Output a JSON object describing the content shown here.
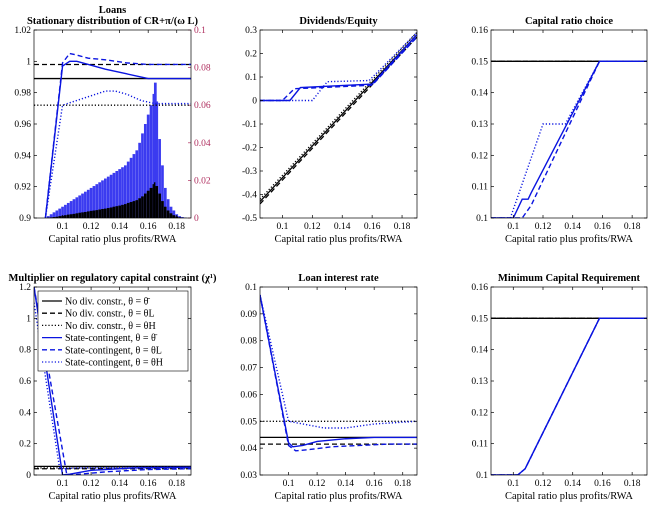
{
  "colors": {
    "black": "#000000",
    "blue": "#0a14e0",
    "hist": "#3b3bf0",
    "right_axis": "#b03060"
  },
  "legend": [
    {
      "label": "No div. constr., θ = θ̄",
      "color": "#000000",
      "dash": "solid"
    },
    {
      "label": "No div. constr., θ = θL",
      "color": "#000000",
      "dash": "dashed"
    },
    {
      "label": "No div. constr., θ = θH",
      "color": "#000000",
      "dash": "dotted"
    },
    {
      "label": "State-contingent, θ = θ̄",
      "color": "#0a14e0",
      "dash": "solid"
    },
    {
      "label": "State-contingent, θ = θL",
      "color": "#0a14e0",
      "dash": "dashed"
    },
    {
      "label": "State-contingent, θ = θH",
      "color": "#0a14e0",
      "dash": "dotted"
    }
  ],
  "chart_data": [
    {
      "id": "loans",
      "type": "line",
      "title": "Loans",
      "subtitle": "Stationary distribution of CR+π/(ω L)",
      "xlabel": "Capital ratio plus profits/RWA",
      "xlim": [
        0.08,
        0.19
      ],
      "ylim": [
        0.9,
        1.02
      ],
      "xticks": [
        "0.1",
        "0.12",
        "0.14",
        "0.16",
        "0.18"
      ],
      "yticks": [
        "0.9",
        "0.92",
        "0.94",
        "0.96",
        "0.98",
        "1",
        "1.02"
      ],
      "y2lim": [
        0,
        0.1
      ],
      "y2ticks": [
        "0",
        "0.02",
        "0.04",
        "0.06",
        "0.08",
        "0.1"
      ],
      "series": [
        {
          "color": "black",
          "dash": "solid",
          "x": [
            0.08,
            0.19
          ],
          "y": [
            0.989,
            0.989
          ]
        },
        {
          "color": "black",
          "dash": "dashed",
          "x": [
            0.08,
            0.19
          ],
          "y": [
            0.998,
            0.998
          ]
        },
        {
          "color": "black",
          "dash": "dotted",
          "x": [
            0.08,
            0.19
          ],
          "y": [
            0.972,
            0.972
          ]
        },
        {
          "color": "blue",
          "dash": "solid",
          "x": [
            0.088,
            0.1,
            0.105,
            0.11,
            0.118,
            0.13,
            0.145,
            0.16,
            0.19
          ],
          "y": [
            0.9,
            0.997,
            1.0,
            1.0,
            0.998,
            0.995,
            0.992,
            0.989,
            0.989
          ]
        },
        {
          "color": "blue",
          "dash": "dashed",
          "x": [
            0.088,
            0.1,
            0.105,
            0.11,
            0.118,
            0.13,
            0.145,
            0.16,
            0.19
          ],
          "y": [
            0.9,
            0.999,
            1.005,
            1.004,
            1.002,
            1.001,
            0.999,
            0.998,
            0.998
          ]
        },
        {
          "color": "blue",
          "dash": "dotted",
          "x": [
            0.088,
            0.1,
            0.11,
            0.12,
            0.13,
            0.137,
            0.145,
            0.155,
            0.165,
            0.19
          ],
          "y": [
            0.9,
            0.972,
            0.975,
            0.978,
            0.981,
            0.981,
            0.979,
            0.975,
            0.973,
            0.973
          ]
        }
      ],
      "histogram": {
        "x": [
          0.09,
          0.092,
          0.094,
          0.096,
          0.098,
          0.1,
          0.102,
          0.104,
          0.106,
          0.108,
          0.11,
          0.112,
          0.114,
          0.116,
          0.118,
          0.12,
          0.122,
          0.124,
          0.126,
          0.128,
          0.13,
          0.132,
          0.134,
          0.136,
          0.138,
          0.14,
          0.142,
          0.144,
          0.146,
          0.148,
          0.15,
          0.152,
          0.154,
          0.156,
          0.158,
          0.16,
          0.162,
          0.164,
          0.165,
          0.166,
          0.168,
          0.17,
          0.172,
          0.174,
          0.176,
          0.178,
          0.18,
          0.182,
          0.184,
          0.186
        ],
        "blue": [
          0.001,
          0.002,
          0.003,
          0.004,
          0.005,
          0.006,
          0.007,
          0.008,
          0.009,
          0.01,
          0.011,
          0.012,
          0.013,
          0.014,
          0.015,
          0.016,
          0.017,
          0.018,
          0.019,
          0.02,
          0.021,
          0.022,
          0.023,
          0.024,
          0.025,
          0.026,
          0.027,
          0.028,
          0.03,
          0.032,
          0.034,
          0.036,
          0.04,
          0.045,
          0.05,
          0.055,
          0.06,
          0.066,
          0.072,
          0.062,
          0.042,
          0.028,
          0.016,
          0.01,
          0.006,
          0.004,
          0.002,
          0.001,
          0.0005,
          0.0002
        ],
        "black": [
          0.0002,
          0.0003,
          0.0005,
          0.0007,
          0.001,
          0.0012,
          0.0015,
          0.0018,
          0.002,
          0.0022,
          0.0025,
          0.0028,
          0.003,
          0.0032,
          0.0035,
          0.0038,
          0.004,
          0.0042,
          0.0045,
          0.0048,
          0.005,
          0.0053,
          0.0056,
          0.006,
          0.0063,
          0.0066,
          0.007,
          0.0074,
          0.008,
          0.0085,
          0.009,
          0.0095,
          0.0105,
          0.0115,
          0.013,
          0.0145,
          0.016,
          0.018,
          0.019,
          0.017,
          0.013,
          0.009,
          0.006,
          0.004,
          0.0025,
          0.0015,
          0.0008,
          0.0004,
          0.0002,
          0.0001
        ]
      }
    },
    {
      "id": "dividends",
      "type": "line",
      "title": "Dividends/Equity",
      "xlabel": "Capital ratio plus profits/RWA",
      "xlim": [
        0.085,
        0.19
      ],
      "ylim": [
        -0.5,
        0.3
      ],
      "xticks": [
        "0.1",
        "0.12",
        "0.14",
        "0.16",
        "0.18"
      ],
      "yticks": [
        "-0.5",
        "-0.4",
        "-0.3",
        "-0.2",
        "-0.1",
        "0",
        "0.1",
        "0.2",
        "0.3"
      ],
      "series": [
        {
          "color": "black",
          "dash": "solid",
          "x": [
            0.085,
            0.19
          ],
          "y": [
            -0.43,
            0.28
          ]
        },
        {
          "color": "black",
          "dash": "dashed",
          "x": [
            0.085,
            0.19
          ],
          "y": [
            -0.44,
            0.27
          ]
        },
        {
          "color": "black",
          "dash": "dotted",
          "x": [
            0.085,
            0.19
          ],
          "y": [
            -0.42,
            0.29
          ]
        },
        {
          "color": "blue",
          "dash": "solid",
          "x": [
            0.085,
            0.105,
            0.112,
            0.16,
            0.19
          ],
          "y": [
            0,
            0,
            0.055,
            0.07,
            0.28
          ]
        },
        {
          "color": "blue",
          "dash": "dashed",
          "x": [
            0.085,
            0.1,
            0.108,
            0.16,
            0.19
          ],
          "y": [
            0,
            0,
            0.05,
            0.065,
            0.27
          ]
        },
        {
          "color": "blue",
          "dash": "dotted",
          "x": [
            0.085,
            0.12,
            0.13,
            0.158,
            0.19
          ],
          "y": [
            0,
            0,
            0.08,
            0.085,
            0.29
          ]
        }
      ]
    },
    {
      "id": "capital_ratio",
      "type": "line",
      "title": "Capital ratio choice",
      "xlabel": "Capital ratio plus profits/RWA",
      "xlim": [
        0.085,
        0.19
      ],
      "ylim": [
        0.1,
        0.16
      ],
      "xticks": [
        "0.1",
        "0.12",
        "0.14",
        "0.16",
        "0.18"
      ],
      "yticks": [
        "0.1",
        "0.11",
        "0.12",
        "0.13",
        "0.14",
        "0.15",
        "0.16"
      ],
      "series": [
        {
          "color": "black",
          "dash": "solid",
          "x": [
            0.085,
            0.19
          ],
          "y": [
            0.15,
            0.15
          ]
        },
        {
          "color": "black",
          "dash": "dashed",
          "x": [
            0.085,
            0.19
          ],
          "y": [
            0.15,
            0.15
          ]
        },
        {
          "color": "black",
          "dash": "dotted",
          "x": [
            0.085,
            0.19
          ],
          "y": [
            0.15,
            0.15
          ]
        },
        {
          "color": "blue",
          "dash": "solid",
          "x": [
            0.085,
            0.1,
            0.106,
            0.11,
            0.112,
            0.158,
            0.19
          ],
          "y": [
            0.1,
            0.1,
            0.106,
            0.106,
            0.108,
            0.15,
            0.15
          ]
        },
        {
          "color": "blue",
          "dash": "dashed",
          "x": [
            0.085,
            0.106,
            0.112,
            0.158,
            0.19
          ],
          "y": [
            0.1,
            0.1,
            0.104,
            0.15,
            0.15
          ]
        },
        {
          "color": "blue",
          "dash": "dotted",
          "x": [
            0.085,
            0.098,
            0.12,
            0.13,
            0.135,
            0.158,
            0.19
          ],
          "y": [
            0.1,
            0.1,
            0.13,
            0.13,
            0.13,
            0.15,
            0.15
          ]
        }
      ]
    },
    {
      "id": "multiplier",
      "type": "line",
      "title": "Multiplier on regulatory capital constraint (χ¹)",
      "xlabel": "Capital ratio plus profits/RWA",
      "xlim": [
        0.08,
        0.19
      ],
      "ylim": [
        0,
        1.2
      ],
      "xticks": [
        "0.1",
        "0.12",
        "0.14",
        "0.16",
        "0.18"
      ],
      "yticks": [
        "0",
        "0.2",
        "0.4",
        "0.6",
        "0.8",
        "1",
        "1.2"
      ],
      "series": [
        {
          "color": "black",
          "dash": "solid",
          "x": [
            0.08,
            0.19
          ],
          "y": [
            0.055,
            0.055
          ]
        },
        {
          "color": "black",
          "dash": "dashed",
          "x": [
            0.08,
            0.19
          ],
          "y": [
            0.04,
            0.04
          ]
        },
        {
          "color": "black",
          "dash": "dotted",
          "x": [
            0.08,
            0.19
          ],
          "y": [
            0.045,
            0.045
          ]
        },
        {
          "color": "blue",
          "dash": "solid",
          "x": [
            0.08,
            0.1,
            0.105,
            0.12,
            0.15,
            0.19
          ],
          "y": [
            1.2,
            0.0,
            0.005,
            0.03,
            0.045,
            0.05
          ]
        },
        {
          "color": "blue",
          "dash": "dashed",
          "x": [
            0.08,
            0.103,
            0.106,
            0.13,
            0.16,
            0.19
          ],
          "y": [
            1.2,
            0.0,
            0.0,
            0.02,
            0.035,
            0.04
          ]
        },
        {
          "color": "blue",
          "dash": "dotted",
          "x": [
            0.08,
            0.098,
            0.11,
            0.14,
            0.17,
            0.19
          ],
          "y": [
            1.1,
            0.04,
            0.045,
            0.048,
            0.05,
            0.05
          ]
        }
      ]
    },
    {
      "id": "loan_rate",
      "type": "line",
      "title": "Loan interest rate",
      "xlabel": "Capital ratio plus profits/RWA",
      "xlim": [
        0.08,
        0.19
      ],
      "ylim": [
        0.03,
        0.1
      ],
      "xticks": [
        "0.1",
        "0.12",
        "0.14",
        "0.16",
        "0.18"
      ],
      "yticks": [
        "0.03",
        "0.04",
        "0.05",
        "0.06",
        "0.07",
        "0.08",
        "0.09",
        "0.1"
      ],
      "series": [
        {
          "color": "black",
          "dash": "solid",
          "x": [
            0.08,
            0.19
          ],
          "y": [
            0.044,
            0.044
          ]
        },
        {
          "color": "black",
          "dash": "dashed",
          "x": [
            0.08,
            0.19
          ],
          "y": [
            0.0415,
            0.0415
          ]
        },
        {
          "color": "black",
          "dash": "dotted",
          "x": [
            0.08,
            0.19
          ],
          "y": [
            0.05,
            0.05
          ]
        },
        {
          "color": "blue",
          "dash": "solid",
          "x": [
            0.08,
            0.1,
            0.103,
            0.11,
            0.12,
            0.14,
            0.16,
            0.19
          ],
          "y": [
            0.097,
            0.042,
            0.0405,
            0.041,
            0.0425,
            0.0435,
            0.044,
            0.044
          ]
        },
        {
          "color": "blue",
          "dash": "dashed",
          "x": [
            0.08,
            0.1,
            0.105,
            0.115,
            0.13,
            0.15,
            0.17,
            0.19
          ],
          "y": [
            0.097,
            0.041,
            0.039,
            0.0395,
            0.0405,
            0.041,
            0.0415,
            0.0415
          ]
        },
        {
          "color": "blue",
          "dash": "dotted",
          "x": [
            0.08,
            0.1,
            0.11,
            0.125,
            0.14,
            0.16,
            0.19
          ],
          "y": [
            0.097,
            0.05,
            0.049,
            0.0475,
            0.0475,
            0.049,
            0.05
          ]
        }
      ]
    },
    {
      "id": "min_capital",
      "type": "line",
      "title": "Minimum Capital Requirement",
      "xlabel": "Capital ratio plus profits/RWA",
      "xlim": [
        0.085,
        0.19
      ],
      "ylim": [
        0.1,
        0.16
      ],
      "xticks": [
        "0.1",
        "0.12",
        "0.14",
        "0.16",
        "0.18"
      ],
      "yticks": [
        "0.1",
        "0.11",
        "0.12",
        "0.13",
        "0.14",
        "0.15",
        "0.16"
      ],
      "series": [
        {
          "color": "black",
          "dash": "solid",
          "x": [
            0.085,
            0.19
          ],
          "y": [
            0.15,
            0.15
          ]
        },
        {
          "color": "black",
          "dash": "dashed",
          "x": [
            0.085,
            0.19
          ],
          "y": [
            0.15,
            0.15
          ]
        },
        {
          "color": "black",
          "dash": "dotted",
          "x": [
            0.085,
            0.19
          ],
          "y": [
            0.15,
            0.15
          ]
        },
        {
          "color": "blue",
          "dash": "solid",
          "x": [
            0.085,
            0.103,
            0.108,
            0.158,
            0.19
          ],
          "y": [
            0.1,
            0.1,
            0.102,
            0.15,
            0.15
          ]
        },
        {
          "color": "blue",
          "dash": "dashed",
          "x": [
            0.085,
            0.103,
            0.108,
            0.158,
            0.19
          ],
          "y": [
            0.1,
            0.1,
            0.102,
            0.15,
            0.15
          ]
        },
        {
          "color": "blue",
          "dash": "dotted",
          "x": [
            0.085,
            0.103,
            0.108,
            0.158,
            0.19
          ],
          "y": [
            0.1,
            0.1,
            0.102,
            0.15,
            0.15
          ]
        }
      ]
    }
  ]
}
